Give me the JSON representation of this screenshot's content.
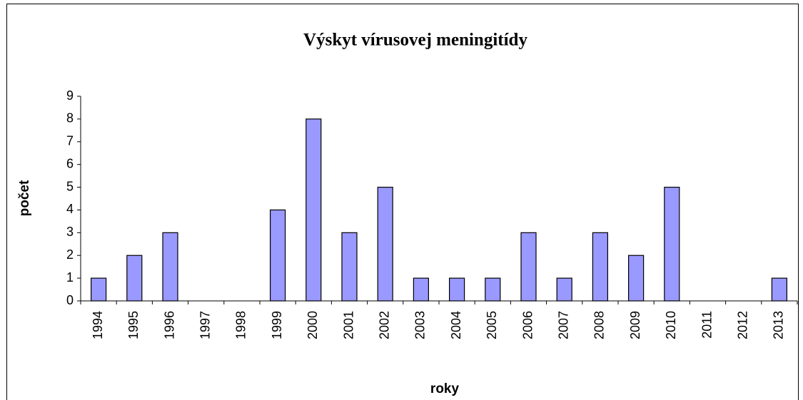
{
  "chart_data": {
    "type": "bar",
    "title": "Výskyt vírusovej meningitídy",
    "x_label": "roky",
    "y_label": "počet",
    "categories": [
      "1994",
      "1995",
      "1996",
      "1997",
      "1998",
      "1999",
      "2000",
      "2001",
      "2002",
      "2003",
      "2004",
      "2005",
      "2006",
      "2007",
      "2008",
      "2009",
      "2010",
      "2011",
      "2012",
      "2013"
    ],
    "values": [
      1,
      2,
      3,
      0,
      0,
      4,
      8,
      3,
      5,
      1,
      1,
      1,
      3,
      1,
      3,
      2,
      5,
      0,
      0,
      1
    ],
    "color": "#9999ff",
    "ylim": [
      0,
      9
    ],
    "yticks": [
      0,
      1,
      2,
      3,
      4,
      5,
      6,
      7,
      8,
      9
    ],
    "grid": false
  }
}
